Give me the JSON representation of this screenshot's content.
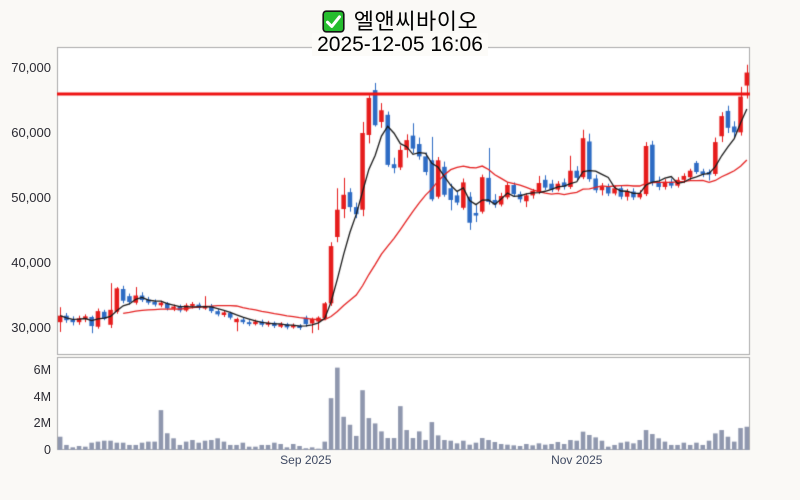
{
  "title": {
    "stock_name": "엘앤씨바이오",
    "datetime": "2025-12-05 16:06",
    "checkbox_color": "#25bd2e"
  },
  "price_axis": {
    "ticks": [
      {
        "label": "70,000",
        "value": 70000
      },
      {
        "label": "60,000",
        "value": 60000
      },
      {
        "label": "50,000",
        "value": 50000
      },
      {
        "label": "40,000",
        "value": 40000
      },
      {
        "label": "30,000",
        "value": 30000
      }
    ]
  },
  "volume_axis": {
    "ticks": [
      {
        "label": "6M",
        "value": 6000000
      },
      {
        "label": "4M",
        "value": 4000000
      },
      {
        "label": "2M",
        "value": 2000000
      },
      {
        "label": "0",
        "value": 0
      }
    ]
  },
  "colors": {
    "up": "#e61c1c",
    "down": "#2d6bc4",
    "volume_bar": "#8f97ae",
    "ma_short": "#1a1a1a",
    "ma_long": "#e52222",
    "reference_line": "#ee1212",
    "pane_border": "#aaaaaa",
    "pane_bg": "#ffffff",
    "page_bg": "#faf9f6"
  },
  "chart_data": {
    "type": "candlestick+volume",
    "title": "엘앤씨바이오",
    "subtitle": "2025-12-05 16:06",
    "reference_line_value": 66000,
    "price_axis_range": [
      25850,
      73230
    ],
    "volume_axis_max": 7000000,
    "ma_short_period": 5,
    "ma_long_period": 20,
    "month_labels": [
      {
        "label": "Sep 2025",
        "index": 39
      },
      {
        "label": "Nov 2025",
        "index": 82
      }
    ],
    "candles_format": [
      "open",
      "high",
      "low",
      "close",
      "volume_millions"
    ],
    "candles": [
      [
        30900,
        33200,
        29400,
        31900,
        1.0
      ],
      [
        31900,
        32300,
        30800,
        31200,
        0.38
      ],
      [
        31300,
        31800,
        30400,
        30900,
        0.2
      ],
      [
        30900,
        31900,
        30500,
        31500,
        0.3
      ],
      [
        31400,
        32100,
        30900,
        31800,
        0.25
      ],
      [
        31700,
        31900,
        29200,
        30300,
        0.55
      ],
      [
        30200,
        33000,
        29900,
        32600,
        0.63
      ],
      [
        32500,
        32800,
        31200,
        31400,
        0.7
      ],
      [
        30500,
        36900,
        30000,
        32800,
        0.7
      ],
      [
        32500,
        36300,
        32200,
        36100,
        0.55
      ],
      [
        36000,
        36500,
        33800,
        34200,
        0.55
      ],
      [
        34900,
        35300,
        33600,
        34000,
        0.38
      ],
      [
        33900,
        36300,
        33600,
        35000,
        0.38
      ],
      [
        35000,
        35500,
        34000,
        34300,
        0.55
      ],
      [
        34400,
        34800,
        33600,
        33900,
        0.63
      ],
      [
        34000,
        34400,
        33300,
        33600,
        0.63
      ],
      [
        33500,
        34200,
        33200,
        33900,
        3.0
      ],
      [
        33800,
        34000,
        32700,
        33000,
        1.26
      ],
      [
        33000,
        33600,
        32600,
        33300,
        0.88
      ],
      [
        33300,
        33600,
        32400,
        32700,
        0.38
      ],
      [
        32700,
        33800,
        32500,
        33500,
        0.63
      ],
      [
        33400,
        34000,
        33000,
        33700,
        0.75
      ],
      [
        33600,
        33900,
        32800,
        33100,
        0.55
      ],
      [
        33000,
        34900,
        32800,
        33400,
        0.7
      ],
      [
        33400,
        33700,
        32300,
        32600,
        0.75
      ],
      [
        32600,
        32900,
        31800,
        32100,
        0.88
      ],
      [
        32000,
        32700,
        31700,
        32400,
        0.63
      ],
      [
        32300,
        32500,
        31300,
        31600,
        0.38
      ],
      [
        30900,
        31600,
        29500,
        31400,
        0.38
      ],
      [
        31300,
        31600,
        30600,
        30900,
        0.55
      ],
      [
        30900,
        31200,
        30300,
        30600,
        0.25
      ],
      [
        30600,
        31300,
        30400,
        31000,
        0.25
      ],
      [
        31000,
        31300,
        30200,
        30500,
        0.38
      ],
      [
        30500,
        31100,
        30200,
        30800,
        0.38
      ],
      [
        30800,
        31000,
        30000,
        30300,
        0.55
      ],
      [
        30200,
        30900,
        30000,
        30600,
        0.45
      ],
      [
        30600,
        30800,
        29800,
        30100,
        0.2
      ],
      [
        30100,
        30700,
        29900,
        30400,
        0.45
      ],
      [
        30400,
        30600,
        29700,
        30000,
        0.3
      ],
      [
        31600,
        31900,
        30200,
        30600,
        0.13
      ],
      [
        30700,
        31600,
        29200,
        31400,
        0.2
      ],
      [
        31000,
        31800,
        29700,
        31600,
        0.1
      ],
      [
        31500,
        34000,
        31200,
        33800,
        0.63
      ],
      [
        33800,
        43200,
        33400,
        42600,
        3.9
      ],
      [
        44000,
        51500,
        43200,
        48200,
        6.2
      ],
      [
        48300,
        53100,
        46900,
        50500,
        2.5
      ],
      [
        50900,
        51500,
        47900,
        48600,
        1.9
      ],
      [
        48600,
        49300,
        46900,
        47500,
        1.06
      ],
      [
        48200,
        61700,
        47200,
        60000,
        4.5
      ],
      [
        59700,
        65800,
        58400,
        65400,
        2.4
      ],
      [
        66600,
        67700,
        61000,
        61200,
        2.0
      ],
      [
        61700,
        64600,
        60800,
        63500,
        1.4
      ],
      [
        62800,
        63300,
        54800,
        55100,
        0.9
      ],
      [
        55200,
        56200,
        53800,
        54600,
        0.9
      ],
      [
        54700,
        58100,
        54300,
        57400,
        3.3
      ],
      [
        57400,
        59800,
        56200,
        58900,
        1.5
      ],
      [
        59600,
        61500,
        56900,
        57600,
        0.9
      ],
      [
        58300,
        59300,
        55900,
        56400,
        1.4
      ],
      [
        56400,
        57000,
        53500,
        54000,
        0.75
      ],
      [
        55800,
        59400,
        49500,
        49800,
        2.1
      ],
      [
        50200,
        56300,
        49900,
        55800,
        1.1
      ],
      [
        54800,
        55600,
        50200,
        50500,
        0.75
      ],
      [
        51500,
        52200,
        48100,
        49700,
        0.7
      ],
      [
        50400,
        51000,
        48900,
        49300,
        0.5
      ],
      [
        48500,
        53000,
        48200,
        52400,
        0.7
      ],
      [
        50200,
        50900,
        45100,
        46200,
        0.4
      ],
      [
        47700,
        48900,
        46300,
        47300,
        0.55
      ],
      [
        47900,
        53600,
        47600,
        53200,
        0.9
      ],
      [
        53100,
        57700,
        49000,
        49400,
        0.75
      ],
      [
        49700,
        50600,
        48500,
        49000,
        0.6
      ],
      [
        49000,
        50800,
        48700,
        50300,
        0.45
      ],
      [
        50100,
        52400,
        49800,
        52000,
        0.4
      ],
      [
        52000,
        52400,
        50200,
        50600,
        0.35
      ],
      [
        50600,
        51000,
        49300,
        49800,
        0.3
      ],
      [
        49500,
        50700,
        48600,
        50400,
        0.45
      ],
      [
        50400,
        51400,
        49900,
        51100,
        0.35
      ],
      [
        50900,
        53400,
        50600,
        52300,
        0.5
      ],
      [
        52800,
        53500,
        51200,
        51600,
        0.4
      ],
      [
        52200,
        52800,
        50900,
        51300,
        0.45
      ],
      [
        51300,
        52600,
        51000,
        52200,
        0.6
      ],
      [
        52400,
        53000,
        51300,
        51700,
        0.45
      ],
      [
        51700,
        56500,
        51400,
        54200,
        0.75
      ],
      [
        54200,
        54900,
        52600,
        53100,
        0.7
      ],
      [
        53200,
        60500,
        52900,
        59200,
        1.38
      ],
      [
        58700,
        59900,
        52500,
        52900,
        1.13
      ],
      [
        53000,
        53600,
        50800,
        51200,
        0.95
      ],
      [
        51200,
        52300,
        50400,
        51800,
        0.7
      ],
      [
        51800,
        52200,
        50300,
        50700,
        0.25
      ],
      [
        50700,
        51900,
        50400,
        51500,
        0.38
      ],
      [
        51500,
        51900,
        49800,
        50200,
        0.55
      ],
      [
        50200,
        51400,
        49600,
        51000,
        0.63
      ],
      [
        51000,
        51500,
        49700,
        50100,
        0.5
      ],
      [
        50100,
        51200,
        49800,
        50700,
        0.75
      ],
      [
        50600,
        58600,
        50300,
        58000,
        1.5
      ],
      [
        58200,
        58800,
        51900,
        52400,
        1.2
      ],
      [
        52400,
        53300,
        51200,
        51700,
        0.88
      ],
      [
        51700,
        52900,
        51300,
        52500,
        0.63
      ],
      [
        52500,
        53000,
        51500,
        51900,
        0.38
      ],
      [
        51900,
        53200,
        51600,
        52800,
        0.38
      ],
      [
        52800,
        53800,
        52300,
        53400,
        0.55
      ],
      [
        53200,
        54500,
        52800,
        54200,
        0.38
      ],
      [
        55400,
        55700,
        53700,
        54000,
        0.55
      ],
      [
        54100,
        54500,
        53200,
        53700,
        0.38
      ],
      [
        54000,
        54400,
        52700,
        53600,
        0.7
      ],
      [
        53700,
        59300,
        53400,
        58600,
        1.25
      ],
      [
        59500,
        63200,
        58600,
        62600,
        1.5
      ],
      [
        63400,
        64200,
        60000,
        60800,
        1.0
      ],
      [
        61000,
        61800,
        59400,
        60100,
        0.63
      ],
      [
        60100,
        67100,
        59600,
        65600,
        1.65
      ],
      [
        67300,
        70500,
        65300,
        69300,
        1.75
      ]
    ]
  }
}
